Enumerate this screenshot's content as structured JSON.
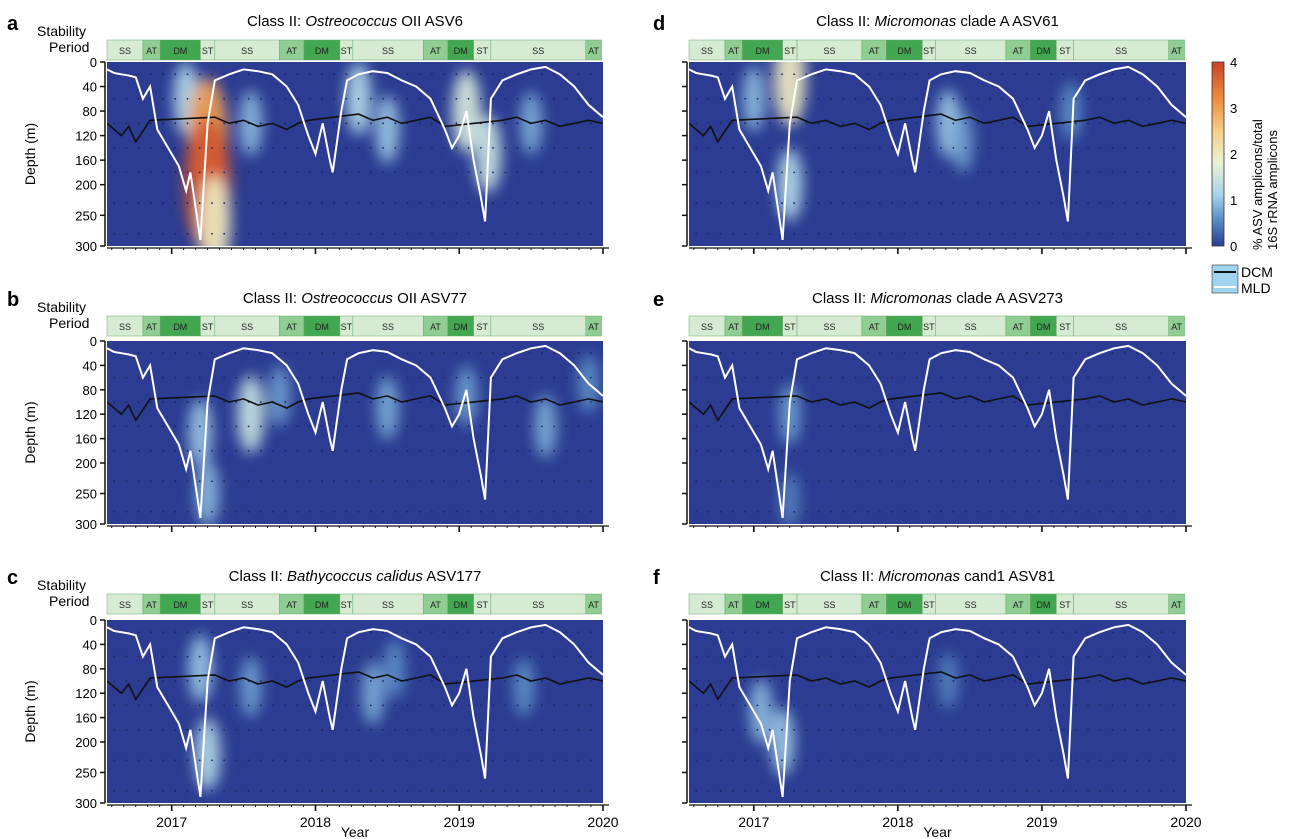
{
  "colors": {
    "background_low": "#2b3c92",
    "band_light": "#d5ecd3",
    "band_medium": "#8fcd92",
    "band_dark": "#43a650",
    "dcm_line": "#111111",
    "mld_line": "#ffffff"
  },
  "colorbar": {
    "label_line1": "% ASV amplicons/total",
    "label_line2": "16S rRNA amplicons",
    "ticks": [
      "0",
      "1",
      "2",
      "3",
      "4"
    ],
    "range": [
      0,
      4
    ]
  },
  "legend": [
    {
      "key": "dcm",
      "label": "DCM"
    },
    {
      "key": "mld",
      "label": "MLD"
    }
  ],
  "shared": {
    "stability_label_line1": "Stability",
    "stability_label_line2": "Period",
    "ylabel": "Depth (m)",
    "xlabel": "Year",
    "depth_ticks": [
      "0",
      "40",
      "80",
      "120",
      "160",
      "200",
      "250",
      "300"
    ],
    "year_ticks": [
      "2017",
      "2018",
      "2019",
      "2020"
    ],
    "stability_periods": [
      {
        "label": "SS",
        "start": 2016.55,
        "end": 2016.8,
        "tone": "light"
      },
      {
        "label": "AT",
        "start": 2016.8,
        "end": 2016.92,
        "tone": "medium"
      },
      {
        "label": "DM",
        "start": 2016.92,
        "end": 2017.2,
        "tone": "dark"
      },
      {
        "label": "ST",
        "start": 2017.2,
        "end": 2017.3,
        "tone": "light"
      },
      {
        "label": "SS",
        "start": 2017.3,
        "end": 2017.75,
        "tone": "light"
      },
      {
        "label": "AT",
        "start": 2017.75,
        "end": 2017.92,
        "tone": "medium"
      },
      {
        "label": "DM",
        "start": 2017.92,
        "end": 2018.17,
        "tone": "dark"
      },
      {
        "label": "ST",
        "start": 2018.17,
        "end": 2018.26,
        "tone": "light"
      },
      {
        "label": "SS",
        "start": 2018.26,
        "end": 2018.75,
        "tone": "light"
      },
      {
        "label": "AT",
        "start": 2018.75,
        "end": 2018.92,
        "tone": "medium"
      },
      {
        "label": "DM",
        "start": 2018.92,
        "end": 2019.1,
        "tone": "dark"
      },
      {
        "label": "ST",
        "start": 2019.1,
        "end": 2019.22,
        "tone": "light"
      },
      {
        "label": "SS",
        "start": 2019.22,
        "end": 2019.88,
        "tone": "light"
      },
      {
        "label": "AT",
        "start": 2019.88,
        "end": 2019.99,
        "tone": "medium"
      }
    ]
  },
  "chart_data": [
    {
      "type": "heatmap",
      "panel_letter": "a",
      "title_prefix": "Class II: ",
      "title_italic": "Ostreococcus",
      "title_suffix": " OII ASV6",
      "xlabel": "",
      "ylabel": "Depth (m)",
      "xlim": [
        2016.55,
        2020.0
      ],
      "ylim": [
        300,
        0
      ],
      "hotspots": [
        {
          "year": 2017.1,
          "depth": 60,
          "value": 1.2
        },
        {
          "year": 2017.25,
          "depth": 120,
          "value": 3.0
        },
        {
          "year": 2017.25,
          "depth": 200,
          "value": 3.8
        },
        {
          "year": 2017.3,
          "depth": 260,
          "value": 2.0
        },
        {
          "year": 2017.55,
          "depth": 100,
          "value": 0.9
        },
        {
          "year": 2018.3,
          "depth": 60,
          "value": 1.2
        },
        {
          "year": 2018.5,
          "depth": 110,
          "value": 1.0
        },
        {
          "year": 2019.05,
          "depth": 80,
          "value": 1.6
        },
        {
          "year": 2019.2,
          "depth": 150,
          "value": 1.4
        },
        {
          "year": 2019.5,
          "depth": 100,
          "value": 0.8
        }
      ]
    },
    {
      "type": "heatmap",
      "panel_letter": "b",
      "title_prefix": "Class II: ",
      "title_italic": "Ostreococcus",
      "title_suffix": " OII ASV77",
      "xlabel": "",
      "ylabel": "Depth (m)",
      "xlim": [
        2016.55,
        2020.0
      ],
      "ylim": [
        300,
        0
      ],
      "hotspots": [
        {
          "year": 2017.2,
          "depth": 150,
          "value": 1.0
        },
        {
          "year": 2017.25,
          "depth": 250,
          "value": 0.9
        },
        {
          "year": 2017.55,
          "depth": 120,
          "value": 1.4
        },
        {
          "year": 2017.75,
          "depth": 90,
          "value": 0.7
        },
        {
          "year": 2018.5,
          "depth": 110,
          "value": 0.8
        },
        {
          "year": 2019.05,
          "depth": 90,
          "value": 0.7
        },
        {
          "year": 2019.6,
          "depth": 140,
          "value": 0.8
        },
        {
          "year": 2019.9,
          "depth": 70,
          "value": 0.6
        }
      ]
    },
    {
      "type": "heatmap",
      "panel_letter": "c",
      "title_prefix": "Class II: ",
      "title_italic": "Bathycoccus calidus",
      "title_suffix": " ASV177",
      "xlabel": "Year",
      "ylabel": "Depth (m)",
      "xlim": [
        2016.55,
        2020.0
      ],
      "ylim": [
        300,
        0
      ],
      "hotspots": [
        {
          "year": 2017.2,
          "depth": 80,
          "value": 1.0
        },
        {
          "year": 2017.25,
          "depth": 220,
          "value": 1.2
        },
        {
          "year": 2017.55,
          "depth": 110,
          "value": 0.7
        },
        {
          "year": 2018.4,
          "depth": 120,
          "value": 0.8
        },
        {
          "year": 2018.55,
          "depth": 80,
          "value": 0.6
        },
        {
          "year": 2019.45,
          "depth": 110,
          "value": 0.6
        }
      ]
    },
    {
      "type": "heatmap",
      "panel_letter": "d",
      "title_prefix": "Class II: ",
      "title_italic": "Micromonas",
      "title_suffix": " clade A ASV61",
      "xlabel": "",
      "ylabel": "",
      "xlim": [
        2016.55,
        2020.0
      ],
      "ylim": [
        300,
        0
      ],
      "hotspots": [
        {
          "year": 2017.0,
          "depth": 60,
          "value": 0.9
        },
        {
          "year": 2017.25,
          "depth": 30,
          "value": 2.0
        },
        {
          "year": 2017.25,
          "depth": 200,
          "value": 1.2
        },
        {
          "year": 2018.35,
          "depth": 100,
          "value": 1.0
        },
        {
          "year": 2018.45,
          "depth": 130,
          "value": 0.7
        },
        {
          "year": 2019.2,
          "depth": 80,
          "value": 0.6
        }
      ]
    },
    {
      "type": "heatmap",
      "panel_letter": "e",
      "title_prefix": "Class II: ",
      "title_italic": "Micromonas",
      "title_suffix": " clade A ASV273",
      "xlabel": "",
      "ylabel": "",
      "xlim": [
        2016.55,
        2020.0
      ],
      "ylim": [
        300,
        0
      ],
      "hotspots": [
        {
          "year": 2017.25,
          "depth": 120,
          "value": 0.7
        },
        {
          "year": 2017.25,
          "depth": 260,
          "value": 0.5
        }
      ]
    },
    {
      "type": "heatmap",
      "panel_letter": "f",
      "title_prefix": "Class II: ",
      "title_italic": "Micromonas",
      "title_suffix": " cand1 ASV81",
      "xlabel": "Year",
      "ylabel": "",
      "xlim": [
        2016.55,
        2020.0
      ],
      "ylim": [
        300,
        0
      ],
      "hotspots": [
        {
          "year": 2017.05,
          "depth": 150,
          "value": 0.9
        },
        {
          "year": 2017.2,
          "depth": 200,
          "value": 1.0
        },
        {
          "year": 2018.35,
          "depth": 100,
          "value": 0.5
        }
      ]
    }
  ],
  "series": {
    "mld": [
      [
        2016.55,
        12
      ],
      [
        2016.6,
        18
      ],
      [
        2016.65,
        20
      ],
      [
        2016.7,
        22
      ],
      [
        2016.75,
        25
      ],
      [
        2016.8,
        60
      ],
      [
        2016.85,
        40
      ],
      [
        2016.9,
        110
      ],
      [
        2016.95,
        130
      ],
      [
        2017.0,
        150
      ],
      [
        2017.05,
        170
      ],
      [
        2017.1,
        210
      ],
      [
        2017.13,
        180
      ],
      [
        2017.2,
        290
      ],
      [
        2017.25,
        100
      ],
      [
        2017.3,
        30
      ],
      [
        2017.4,
        20
      ],
      [
        2017.5,
        12
      ],
      [
        2017.6,
        15
      ],
      [
        2017.7,
        20
      ],
      [
        2017.8,
        40
      ],
      [
        2017.88,
        70
      ],
      [
        2017.95,
        120
      ],
      [
        2018.0,
        150
      ],
      [
        2018.05,
        100
      ],
      [
        2018.1,
        160
      ],
      [
        2018.12,
        180
      ],
      [
        2018.18,
        80
      ],
      [
        2018.22,
        30
      ],
      [
        2018.3,
        20
      ],
      [
        2018.4,
        15
      ],
      [
        2018.5,
        18
      ],
      [
        2018.6,
        30
      ],
      [
        2018.7,
        40
      ],
      [
        2018.8,
        60
      ],
      [
        2018.9,
        110
      ],
      [
        2018.95,
        140
      ],
      [
        2019.0,
        120
      ],
      [
        2019.05,
        80
      ],
      [
        2019.1,
        160
      ],
      [
        2019.15,
        220
      ],
      [
        2019.18,
        260
      ],
      [
        2019.22,
        60
      ],
      [
        2019.3,
        30
      ],
      [
        2019.4,
        20
      ],
      [
        2019.5,
        12
      ],
      [
        2019.6,
        8
      ],
      [
        2019.7,
        20
      ],
      [
        2019.8,
        40
      ],
      [
        2019.9,
        70
      ],
      [
        2020.0,
        90
      ]
    ],
    "dcm": [
      [
        2016.55,
        100
      ],
      [
        2016.6,
        110
      ],
      [
        2016.65,
        120
      ],
      [
        2016.7,
        105
      ],
      [
        2016.75,
        130
      ],
      [
        2016.85,
        95
      ],
      [
        2017.3,
        90
      ],
      [
        2017.4,
        100
      ],
      [
        2017.5,
        95
      ],
      [
        2017.6,
        105
      ],
      [
        2017.7,
        100
      ],
      [
        2017.8,
        110
      ],
      [
        2017.88,
        100
      ],
      [
        2017.95,
        95
      ],
      [
        2018.3,
        85
      ],
      [
        2018.4,
        95
      ],
      [
        2018.5,
        90
      ],
      [
        2018.6,
        100
      ],
      [
        2018.7,
        95
      ],
      [
        2018.8,
        90
      ],
      [
        2018.9,
        105
      ],
      [
        2019.3,
        95
      ],
      [
        2019.4,
        90
      ],
      [
        2019.5,
        100
      ],
      [
        2019.6,
        95
      ],
      [
        2019.7,
        105
      ],
      [
        2019.8,
        100
      ],
      [
        2019.9,
        95
      ],
      [
        2020.0,
        100
      ]
    ]
  }
}
